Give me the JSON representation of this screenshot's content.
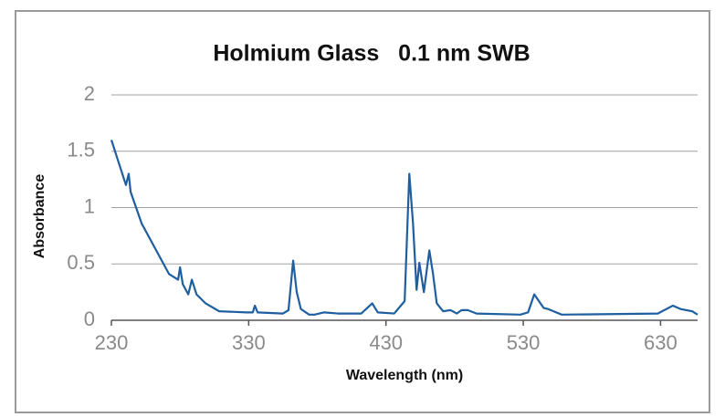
{
  "chart_data": {
    "type": "line",
    "title": "Holmium Glass   0.1 nm SWB",
    "xlabel": "Wavelength (nm)",
    "ylabel": "Absorbance",
    "xlim": [
      230,
      657
    ],
    "ylim": [
      0,
      2
    ],
    "xticks": [
      230,
      330,
      430,
      530,
      630
    ],
    "yticks": [
      0,
      0.5,
      1,
      1.5,
      2
    ],
    "grid": true,
    "series": [
      {
        "name": "Holmium Glass",
        "color": "#1f5fa0",
        "x": [
          230,
          240.6,
          242.6,
          244,
          252,
          272,
          278.6,
          280,
          282,
          286,
          288.6,
          292,
          298.6,
          308.5,
          328.5,
          333,
          334.5,
          336.5,
          355,
          359,
          362.4,
          365,
          368,
          374,
          378,
          385,
          395,
          412,
          420,
          424,
          436,
          443.6,
          447,
          449.7,
          452.3,
          454.3,
          457.6,
          461.6,
          464.3,
          467,
          471.6,
          477,
          481.6,
          485,
          489.6,
          496,
          528,
          533.5,
          538,
          544.8,
          548,
          558,
          628,
          639,
          644.6,
          653,
          657
        ],
        "values": [
          1.6,
          1.2,
          1.3,
          1.14,
          0.86,
          0.41,
          0.36,
          0.47,
          0.32,
          0.23,
          0.36,
          0.23,
          0.15,
          0.08,
          0.07,
          0.07,
          0.13,
          0.07,
          0.06,
          0.09,
          0.53,
          0.25,
          0.1,
          0.05,
          0.05,
          0.07,
          0.06,
          0.06,
          0.15,
          0.07,
          0.06,
          0.17,
          1.3,
          0.86,
          0.27,
          0.51,
          0.25,
          0.62,
          0.41,
          0.15,
          0.08,
          0.09,
          0.06,
          0.09,
          0.09,
          0.06,
          0.05,
          0.07,
          0.23,
          0.11,
          0.1,
          0.05,
          0.06,
          0.13,
          0.1,
          0.08,
          0.05
        ]
      }
    ]
  }
}
